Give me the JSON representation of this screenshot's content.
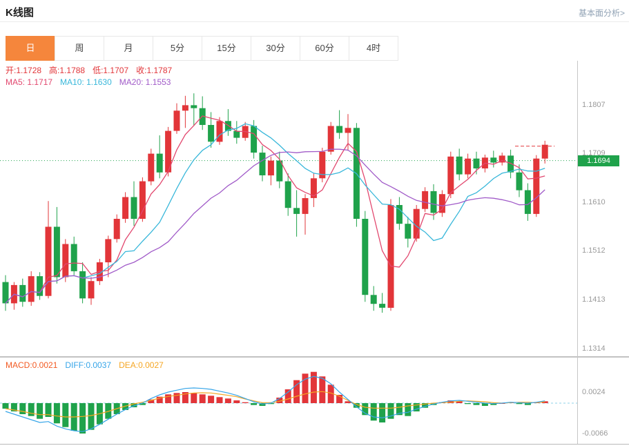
{
  "header": {
    "title": "K线图",
    "link": "基本面分析>"
  },
  "tabs": {
    "items": [
      {
        "label": "日",
        "active": true
      },
      {
        "label": "周",
        "active": false
      },
      {
        "label": "月",
        "active": false
      },
      {
        "label": "5分",
        "active": false
      },
      {
        "label": "15分",
        "active": false
      },
      {
        "label": "30分",
        "active": false
      },
      {
        "label": "60分",
        "active": false
      },
      {
        "label": "4时",
        "active": false
      }
    ]
  },
  "ohlc_legend": [
    {
      "key": "open",
      "label": "开:",
      "value": "1.1728",
      "color_key": "up"
    },
    {
      "key": "high",
      "label": "高:",
      "value": "1.1788",
      "color_key": "up"
    },
    {
      "key": "low",
      "label": "低:",
      "value": "1.1707",
      "color_key": "up"
    },
    {
      "key": "close",
      "label": "收:",
      "value": "1.1787",
      "color_key": "up"
    }
  ],
  "ma_legend": [
    {
      "key": "ma5",
      "label": "MA5:",
      "value": "1.1717",
      "color_key": "ma5"
    },
    {
      "key": "ma10",
      "label": "MA10:",
      "value": "1.1630",
      "color_key": "ma10"
    },
    {
      "key": "ma20",
      "label": "MA20:",
      "value": "1.1553",
      "color_key": "ma20"
    }
  ],
  "macd_legend": [
    {
      "key": "macd",
      "label": "MACD:",
      "value": "0.0021",
      "color_key": "macd_text"
    },
    {
      "key": "diff",
      "label": "DIFF:",
      "value": "0.0037",
      "color_key": "diff"
    },
    {
      "key": "dea",
      "label": "DEA:",
      "value": "0.0027",
      "color_key": "dea"
    }
  ],
  "colors": {
    "up": "#e23539",
    "down": "#1fa24b",
    "ma5": "#e2476e",
    "ma10": "#38b7da",
    "ma20": "#a05ac8",
    "diff": "#36a5e8",
    "dea": "#f5a623",
    "macd_text": "#f25a22",
    "zero_line": "#8ed2ea",
    "current_line": "#1fa24b",
    "tab_active_bg": "#f5863c",
    "link_text": "#90a2b4",
    "axis_text": "#999999"
  },
  "chart_data": {
    "type": "candlestick+macd",
    "title": "K线图",
    "price_panel": {
      "ohlc": [
        [
          1.1448,
          1.1462,
          1.139,
          1.1405
        ],
        [
          1.1405,
          1.1448,
          1.1392,
          1.1442
        ],
        [
          1.1442,
          1.1455,
          1.1398,
          1.1408
        ],
        [
          1.1408,
          1.147,
          1.14,
          1.146
        ],
        [
          1.146,
          1.1468,
          1.1412,
          1.142
        ],
        [
          1.142,
          1.1612,
          1.1415,
          1.156
        ],
        [
          1.156,
          1.16,
          1.1445,
          1.1458
        ],
        [
          1.1458,
          1.1535,
          1.1448,
          1.1525
        ],
        [
          1.1525,
          1.154,
          1.1462,
          1.147
        ],
        [
          1.147,
          1.1488,
          1.1405,
          1.1415
        ],
        [
          1.1415,
          1.1458,
          1.1402,
          1.145
        ],
        [
          1.145,
          1.1495,
          1.1442,
          1.1488
        ],
        [
          1.1488,
          1.1542,
          1.1458,
          1.1535
        ],
        [
          1.1535,
          1.1585,
          1.1528,
          1.1576
        ],
        [
          1.1576,
          1.163,
          1.1568,
          1.162
        ],
        [
          1.162,
          1.1652,
          1.1562,
          1.1576
        ],
        [
          1.1576,
          1.166,
          1.157,
          1.1652
        ],
        [
          1.1652,
          1.1718,
          1.1644,
          1.1708
        ],
        [
          1.1708,
          1.1745,
          1.1658,
          1.167
        ],
        [
          1.167,
          1.1762,
          1.1662,
          1.1754
        ],
        [
          1.1754,
          1.181,
          1.1748,
          1.1795
        ],
        [
          1.1795,
          1.1825,
          1.176,
          1.1806
        ],
        [
          1.1806,
          1.183,
          1.1764,
          1.18
        ],
        [
          1.18,
          1.1824,
          1.1756,
          1.1766
        ],
        [
          1.1766,
          1.1792,
          1.172,
          1.1732
        ],
        [
          1.1732,
          1.1782,
          1.1726,
          1.1774
        ],
        [
          1.1774,
          1.1798,
          1.1744,
          1.1754
        ],
        [
          1.1754,
          1.1774,
          1.1728,
          1.174
        ],
        [
          1.174,
          1.1772,
          1.1734,
          1.1764
        ],
        [
          1.1764,
          1.1776,
          1.1698,
          1.171
        ],
        [
          1.171,
          1.1724,
          1.1652,
          1.1664
        ],
        [
          1.1664,
          1.1702,
          1.1644,
          1.1694
        ],
        [
          1.1694,
          1.1712,
          1.1638,
          1.1652
        ],
        [
          1.1652,
          1.1668,
          1.1582,
          1.1598
        ],
        [
          1.1598,
          1.1634,
          1.154,
          1.1586
        ],
        [
          1.1586,
          1.1626,
          1.1544,
          1.1618
        ],
        [
          1.1618,
          1.1668,
          1.16,
          1.1658
        ],
        [
          1.1658,
          1.172,
          1.165,
          1.1712
        ],
        [
          1.1712,
          1.1772,
          1.1706,
          1.1764
        ],
        [
          1.1764,
          1.1796,
          1.1738,
          1.175
        ],
        [
          1.175,
          1.1788,
          1.1714,
          1.176
        ],
        [
          1.176,
          1.177,
          1.156,
          1.1576
        ],
        [
          1.1576,
          1.1592,
          1.1408,
          1.1422
        ],
        [
          1.1422,
          1.144,
          1.139,
          1.1404
        ],
        [
          1.1404,
          1.1426,
          1.1386,
          1.1396
        ],
        [
          1.1396,
          1.1616,
          1.139,
          1.1604
        ],
        [
          1.1604,
          1.162,
          1.1554,
          1.1566
        ],
        [
          1.1566,
          1.158,
          1.1518,
          1.1536
        ],
        [
          1.1536,
          1.1604,
          1.153,
          1.1596
        ],
        [
          1.1596,
          1.164,
          1.159,
          1.1632
        ],
        [
          1.1632,
          1.1646,
          1.1574,
          1.1588
        ],
        [
          1.1588,
          1.1634,
          1.158,
          1.1626
        ],
        [
          1.1626,
          1.1712,
          1.1618,
          1.1702
        ],
        [
          1.1702,
          1.1718,
          1.1654,
          1.1666
        ],
        [
          1.1666,
          1.1708,
          1.1658,
          1.1698
        ],
        [
          1.1698,
          1.1712,
          1.1666,
          1.1678
        ],
        [
          1.1678,
          1.1706,
          1.167,
          1.17
        ],
        [
          1.17,
          1.1714,
          1.168,
          1.169
        ],
        [
          1.169,
          1.171,
          1.1684,
          1.1704
        ],
        [
          1.1704,
          1.1716,
          1.1658,
          1.167
        ],
        [
          1.167,
          1.1686,
          1.162,
          1.1634
        ],
        [
          1.1634,
          1.1648,
          1.1572,
          1.1586
        ],
        [
          1.1586,
          1.1705,
          1.158,
          1.1698
        ],
        [
          1.1698,
          1.1734,
          1.1688,
          1.1726
        ]
      ],
      "ma_periods": [
        5,
        10,
        20
      ],
      "y_ticks": [
        1.1807,
        1.1709,
        1.161,
        1.1512,
        1.1413,
        1.1314
      ],
      "ylim": [
        1.1298,
        1.1896
      ],
      "current_price": 1.1694,
      "dashed_segment": {
        "price": 1.1723,
        "from_index": 60,
        "to_index": 63
      }
    },
    "macd_panel": {
      "hist": [
        -0.0012,
        -0.0018,
        -0.0024,
        -0.0028,
        -0.0034,
        -0.003,
        -0.0044,
        -0.0052,
        -0.006,
        -0.0066,
        -0.0058,
        -0.0046,
        -0.0034,
        -0.0024,
        -0.0015,
        -0.0009,
        -0.0004,
        0.0008,
        0.0014,
        0.0019,
        0.0022,
        0.0024,
        0.0022,
        0.0019,
        0.0016,
        0.0013,
        0.001,
        0.0006,
        0.0002,
        -0.0004,
        -0.0006,
        -0.0002,
        0.0012,
        0.003,
        0.005,
        0.0064,
        0.0068,
        0.0058,
        0.004,
        0.0018,
        0.0004,
        -0.001,
        -0.0026,
        -0.0038,
        -0.0042,
        -0.0034,
        -0.0026,
        -0.0028,
        -0.0018,
        -0.001,
        -0.0004,
        0.0002,
        0.0006,
        0.0004,
        -0.0002,
        -0.0004,
        -0.0006,
        -0.0004,
        0.0,
        0.0002,
        -0.0002,
        -0.0004,
        0.0002,
        0.0004
      ],
      "diff": [
        -0.0018,
        -0.0024,
        -0.003,
        -0.0036,
        -0.0042,
        -0.004,
        -0.005,
        -0.0056,
        -0.006,
        -0.0062,
        -0.0056,
        -0.0046,
        -0.0035,
        -0.0024,
        -0.0014,
        -0.0006,
        0.0,
        0.001,
        0.0018,
        0.0024,
        0.0028,
        0.0032,
        0.0033,
        0.0032,
        0.003,
        0.0026,
        0.0022,
        0.0017,
        0.001,
        0.0003,
        -0.0002,
        0.0,
        0.001,
        0.0024,
        0.004,
        0.0052,
        0.0058,
        0.0054,
        0.0042,
        0.0024,
        0.0008,
        -0.0008,
        -0.0022,
        -0.003,
        -0.0032,
        -0.0028,
        -0.0022,
        -0.002,
        -0.0013,
        -0.0007,
        -0.0002,
        0.0002,
        0.0005,
        0.0006,
        0.0004,
        0.0002,
        0.0,
        -0.0001,
        0.0,
        0.0002,
        0.0001,
        0.0,
        0.0002,
        0.0005
      ],
      "y_ticks": [
        0.0024,
        -0.0066
      ],
      "ylim": [
        -0.0087,
        0.0099
      ]
    }
  }
}
